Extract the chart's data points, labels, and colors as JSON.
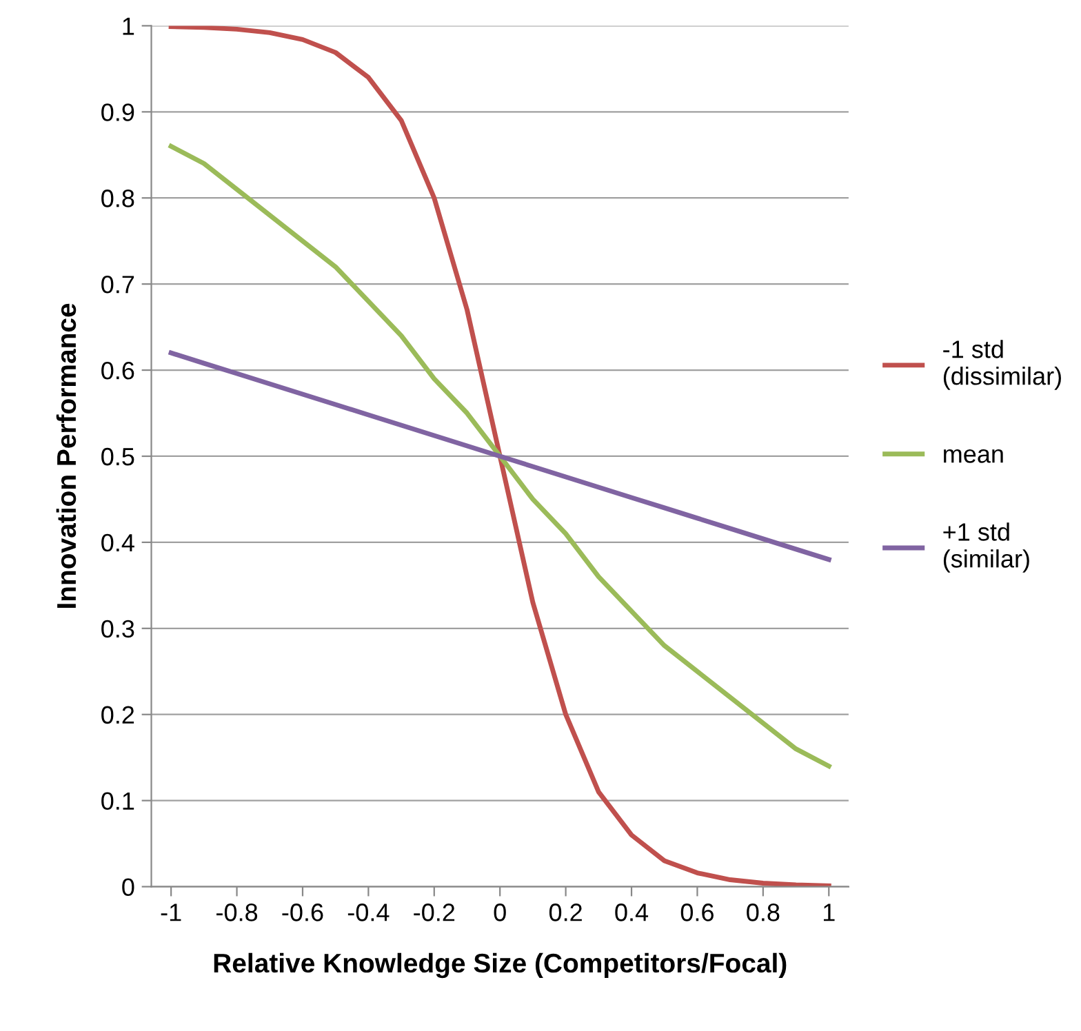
{
  "chart_data": {
    "type": "line",
    "xlabel": "Relative Knowledge Size (Competitors/Focal)",
    "ylabel": "Innovation Performance",
    "x": [
      -1,
      -0.9,
      -0.8,
      -0.7,
      -0.6,
      -0.5,
      -0.4,
      -0.3,
      -0.2,
      -0.1,
      0,
      0.1,
      0.2,
      0.3,
      0.4,
      0.5,
      0.6,
      0.7,
      0.8,
      0.9,
      1
    ],
    "series": [
      {
        "name": "-1 std\n(dissimilar)",
        "color": "#c0504d",
        "values": [
          0.999,
          0.998,
          0.996,
          0.992,
          0.984,
          0.969,
          0.94,
          0.89,
          0.8,
          0.67,
          0.5,
          0.33,
          0.2,
          0.11,
          0.06,
          0.03,
          0.016,
          0.008,
          0.004,
          0.002,
          0.001
        ]
      },
      {
        "name": "mean",
        "color": "#9bbb59",
        "values": [
          0.86,
          0.84,
          0.81,
          0.78,
          0.75,
          0.72,
          0.68,
          0.64,
          0.59,
          0.55,
          0.5,
          0.45,
          0.41,
          0.36,
          0.32,
          0.28,
          0.25,
          0.22,
          0.19,
          0.16,
          0.14
        ]
      },
      {
        "name": "+1 std\n(similar)",
        "color": "#8064a2",
        "values": [
          0.62,
          0.608,
          0.596,
          0.584,
          0.572,
          0.56,
          0.548,
          0.536,
          0.524,
          0.512,
          0.5,
          0.488,
          0.476,
          0.464,
          0.452,
          0.44,
          0.428,
          0.416,
          0.404,
          0.392,
          0.38
        ]
      }
    ],
    "xlim": [
      -1.06,
      1.06
    ],
    "xticks": [
      -1,
      -0.8,
      -0.6,
      -0.4,
      -0.2,
      0,
      0.2,
      0.4,
      0.6,
      0.8,
      1
    ],
    "ylim": [
      0,
      1
    ],
    "yticks": [
      0,
      0.1,
      0.2,
      0.3,
      0.4,
      0.5,
      0.6,
      0.7,
      0.8,
      0.9,
      1
    ],
    "grid": "y",
    "legend": "right",
    "marker": "none",
    "line_style": "solid"
  }
}
